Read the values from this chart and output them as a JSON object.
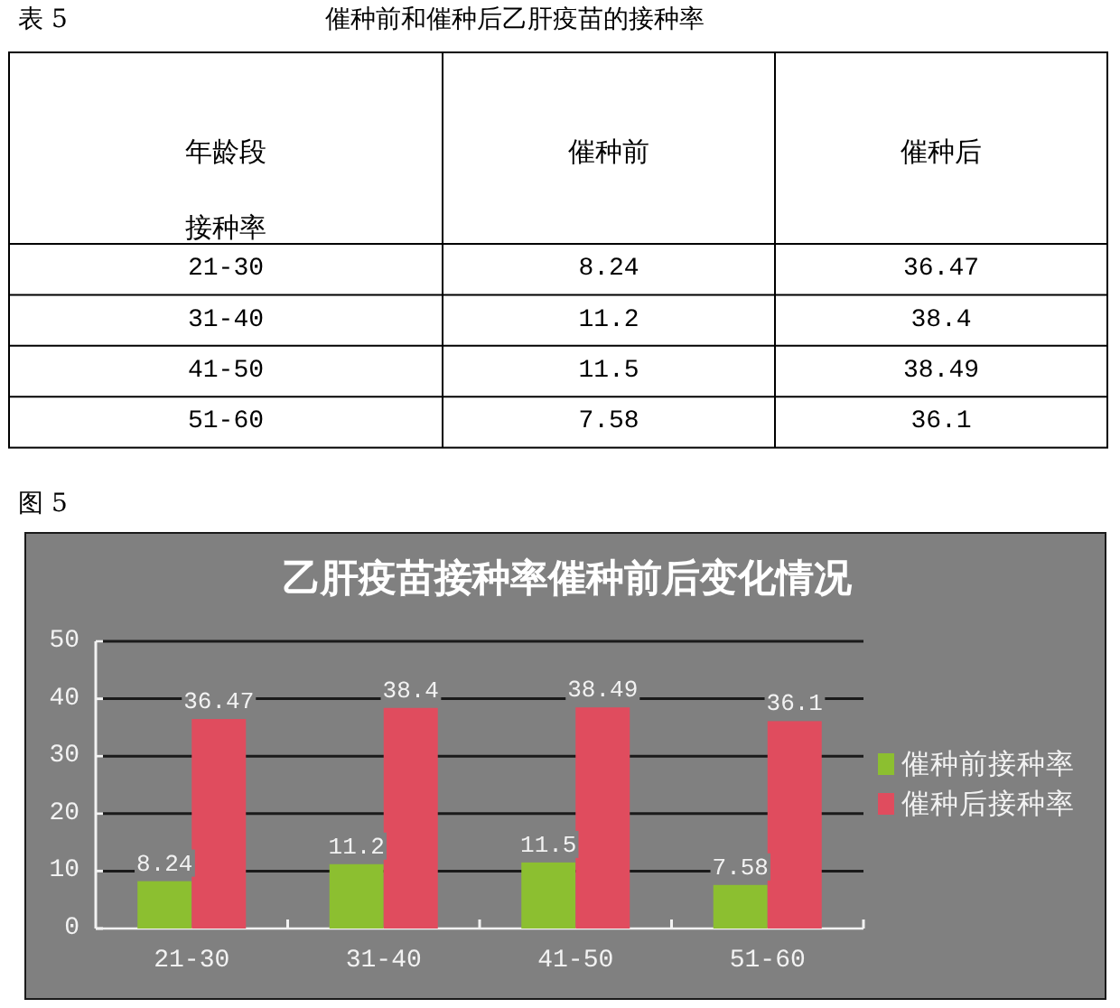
{
  "chart_data": [
    {
      "type": "other",
      "title": "催种前和催种后乙肝疫苗的接种率",
      "annotations": [
        "表 5"
      ],
      "xlabel": "年龄段",
      "ylabel": "接种率",
      "categories": [
        "21-30",
        "31-40",
        "41-50",
        "51-60"
      ],
      "series": [
        {
          "name": "催种前",
          "values": [
            8.24,
            11.2,
            11.5,
            7.58
          ]
        },
        {
          "name": "催种后",
          "values": [
            36.47,
            38.4,
            38.49,
            36.1
          ]
        }
      ],
      "data_labels": true
    },
    {
      "type": "bar",
      "title": "乙肝疫苗接种率催种前后变化情况",
      "annotations": [
        "图 5"
      ],
      "categories": [
        "21-30",
        "31-40",
        "41-50",
        "51-60"
      ],
      "series": [
        {
          "name": "催种前接种率",
          "color": "#8cbf30",
          "values": [
            8.24,
            11.2,
            11.5,
            7.58
          ]
        },
        {
          "name": "催种后接种率",
          "color": "#e04c5e",
          "values": [
            36.47,
            38.4,
            38.49,
            36.1
          ]
        }
      ],
      "ylim": [
        0,
        50
      ],
      "yticks": [
        0,
        10,
        20,
        30,
        40,
        50
      ],
      "grid": "y",
      "legend": "right",
      "data_labels": true
    }
  ]
}
